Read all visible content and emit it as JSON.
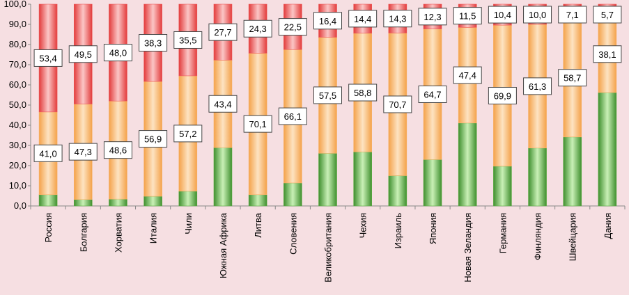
{
  "chart_data": {
    "type": "bar",
    "stacked": true,
    "ylim": [
      0,
      100
    ],
    "yticks": [
      "0,0",
      "10,0",
      "20,0",
      "30,0",
      "40,0",
      "50,0",
      "60,0",
      "70,0",
      "80,0",
      "90,0",
      "100,0"
    ],
    "categories": [
      "Россия",
      "Болгария",
      "Хорватия",
      "Италия",
      "Чили",
      "Южная Африка",
      "Литва",
      "Словения",
      "Великобритания",
      "Чехия",
      "Израиль",
      "Япония",
      "Новая Зеландия",
      "Германия",
      "Финляндия",
      "Швейцария",
      "Дания"
    ],
    "series": [
      {
        "name": "green",
        "color": "#5fae45",
        "values": [
          5.6,
          3.2,
          3.4,
          4.8,
          7.3,
          28.9,
          5.6,
          11.4,
          26.1,
          26.8,
          15.0,
          23.0,
          41.1,
          19.7,
          28.7,
          34.2,
          56.2
        ]
      },
      {
        "name": "orange",
        "color": "#f7b26a",
        "values": [
          41.0,
          47.3,
          48.6,
          56.9,
          57.2,
          43.4,
          70.1,
          66.1,
          57.5,
          58.8,
          70.7,
          64.7,
          47.4,
          69.9,
          61.3,
          58.7,
          38.1
        ]
      },
      {
        "name": "red",
        "color": "#ef5a5a",
        "values": [
          53.4,
          49.5,
          48.0,
          38.3,
          35.5,
          27.7,
          24.3,
          22.5,
          16.4,
          14.4,
          14.3,
          12.3,
          11.5,
          10.4,
          10.0,
          7.1,
          5.7
        ]
      }
    ],
    "data_labels": {
      "orange": [
        "41,0",
        "47,3",
        "48,6",
        "56,9",
        "57,2",
        "43,4",
        "70,1",
        "66,1",
        "57,5",
        "58,8",
        "70,7",
        "64,7",
        "47,4",
        "69,9",
        "61,3",
        "58,7",
        "38,1"
      ],
      "red": [
        "53,4",
        "49,5",
        "48,0",
        "38,3",
        "35,5",
        "27,7",
        "24,3",
        "22,5",
        "16,4",
        "14,4",
        "14,3",
        "12,3",
        "11,5",
        "10,4",
        "10,0",
        "7,1",
        "5,7"
      ]
    }
  }
}
